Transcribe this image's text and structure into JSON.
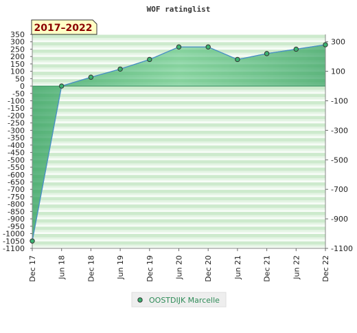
{
  "chart_data": {
    "type": "area",
    "title": "WOF ratinglist",
    "period_badge": "2017–2022",
    "xlabel": "",
    "ylabel": "",
    "categories": [
      "Dec 17",
      "Jun 18",
      "Dec 18",
      "Jun 19",
      "Dec 19",
      "Jun 20",
      "Dec 20",
      "Jun 21",
      "Dec 21",
      "Jun 22",
      "Dec 22"
    ],
    "series": [
      {
        "name": "OOSTDIJK Marcelle",
        "values": [
          -1050,
          0,
          60,
          115,
          180,
          265,
          265,
          180,
          220,
          250,
          280
        ]
      }
    ],
    "ylim": [
      -1100,
      350
    ],
    "left_ticks": [
      350,
      300,
      250,
      200,
      150,
      100,
      50,
      0,
      -50,
      -100,
      -150,
      -200,
      -250,
      -300,
      -350,
      -400,
      -450,
      -500,
      -550,
      -600,
      -650,
      -700,
      -750,
      -800,
      -850,
      -900,
      -950,
      -1000,
      -1050,
      -1100
    ],
    "left_tick_labels": [
      "350",
      "300",
      "250",
      "200",
      "150",
      "100",
      "50",
      "0",
      "-50",
      "-100",
      "-150",
      "-200",
      "-250",
      "-300",
      "-350",
      "-400",
      "-450",
      "-500",
      "-550",
      "-600",
      "-650",
      "-700",
      "-750",
      "-800",
      "-850",
      "-900",
      "-950",
      "-1000",
      "-1050",
      "-1100"
    ],
    "right_ticks": [
      300,
      100,
      -100,
      -300,
      -500,
      -700,
      -900,
      -1100
    ],
    "right_tick_labels": [
      "300",
      "100",
      "-100",
      "-300",
      "-500",
      "-700",
      "-900",
      "-1100"
    ],
    "grid": true,
    "legend_position": "bottom-center",
    "colors": {
      "area_fill": "#3cb371",
      "line": "#4a90c8",
      "marker_fill": "#3cb371",
      "marker_stroke": "#333333",
      "band_dark": "#cdeacd",
      "band_light": "#f3fbf3",
      "badge_bg": "#ffffc6",
      "badge_text": "#8B0000",
      "legend_text": "#2e8b57",
      "legend_bg": "#eeeeee"
    }
  }
}
